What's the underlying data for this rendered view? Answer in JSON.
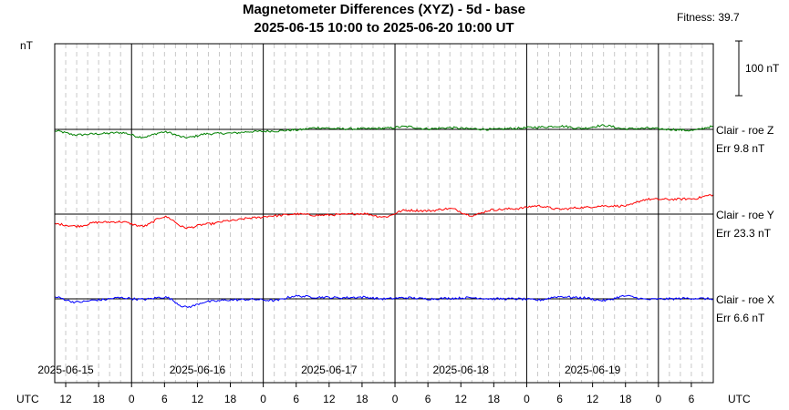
{
  "chart_data": {
    "type": "line",
    "title": "Magnetometer Differences (XYZ) - 5d - base",
    "subtitle": "2025-06-15 10:00 to 2025-06-20 10:00 UT",
    "fitness": "Fitness: 39.7",
    "ylabel": "nT",
    "x_left_label": "UTC",
    "x_right_label": "UTC",
    "scale_bar_label": "100 nT",
    "scale_bar_value": 100,
    "x_range_hours": [
      0,
      120
    ],
    "x_start": "2025-06-15 10:00",
    "x_hour_ticks": [
      "12",
      "18",
      "0",
      "6",
      "12",
      "18",
      "0",
      "6",
      "12",
      "18",
      "0",
      "6",
      "12",
      "18",
      "0",
      "6",
      "12",
      "18",
      "0",
      "6"
    ],
    "date_labels": [
      "2025-06-15",
      "2025-06-16",
      "2025-06-17",
      "2025-06-18",
      "2025-06-19"
    ],
    "grid": true,
    "series": [
      {
        "name": "Clair - roe Z",
        "err": "Err 9.8 nT",
        "color": "#008000",
        "baseline": 0,
        "points_hours": [
          0,
          4,
          8,
          12,
          16,
          20,
          24,
          28,
          32,
          36,
          40,
          44,
          48,
          52,
          56,
          60,
          64,
          68,
          72,
          76,
          80,
          84,
          88,
          92,
          96,
          100,
          104,
          108,
          112,
          116,
          120
        ],
        "values_nT": [
          -3,
          -10,
          -8,
          -6,
          -14,
          -5,
          -15,
          -8,
          -7,
          -4,
          -3,
          -1,
          3,
          1,
          1,
          2,
          5,
          1,
          3,
          1,
          0,
          2,
          4,
          6,
          2,
          7,
          1,
          2,
          0,
          -2,
          5
        ]
      },
      {
        "name": "Clair - roe Y",
        "err": "Err 23.3 nT",
        "color": "#ff0000",
        "baseline": 0,
        "points_hours": [
          0,
          4,
          8,
          12,
          16,
          20,
          24,
          28,
          32,
          36,
          40,
          44,
          48,
          52,
          56,
          60,
          64,
          68,
          72,
          76,
          80,
          84,
          88,
          92,
          96,
          100,
          104,
          108,
          112,
          116,
          120
        ],
        "values_nT": [
          -18,
          -22,
          -15,
          -14,
          -22,
          -5,
          -25,
          -18,
          -12,
          -7,
          -3,
          0,
          -2,
          -1,
          1,
          -5,
          7,
          6,
          10,
          -2,
          8,
          10,
          15,
          9,
          12,
          15,
          15,
          27,
          27,
          28,
          35
        ]
      },
      {
        "name": "Clair - roe X",
        "err": "Err 6.6 nT",
        "color": "#0000ff",
        "baseline": 0,
        "points_hours": [
          0,
          4,
          8,
          12,
          16,
          20,
          24,
          28,
          32,
          36,
          40,
          44,
          48,
          52,
          56,
          60,
          64,
          68,
          72,
          76,
          80,
          84,
          88,
          92,
          96,
          100,
          104,
          108,
          112,
          116,
          120
        ],
        "values_nT": [
          3,
          -6,
          -2,
          2,
          -1,
          3,
          -15,
          -5,
          -2,
          -1,
          -3,
          5,
          3,
          2,
          3,
          0,
          2,
          0,
          1,
          2,
          0,
          0,
          -2,
          4,
          2,
          -3,
          5,
          -1,
          0,
          1,
          0
        ]
      }
    ]
  }
}
